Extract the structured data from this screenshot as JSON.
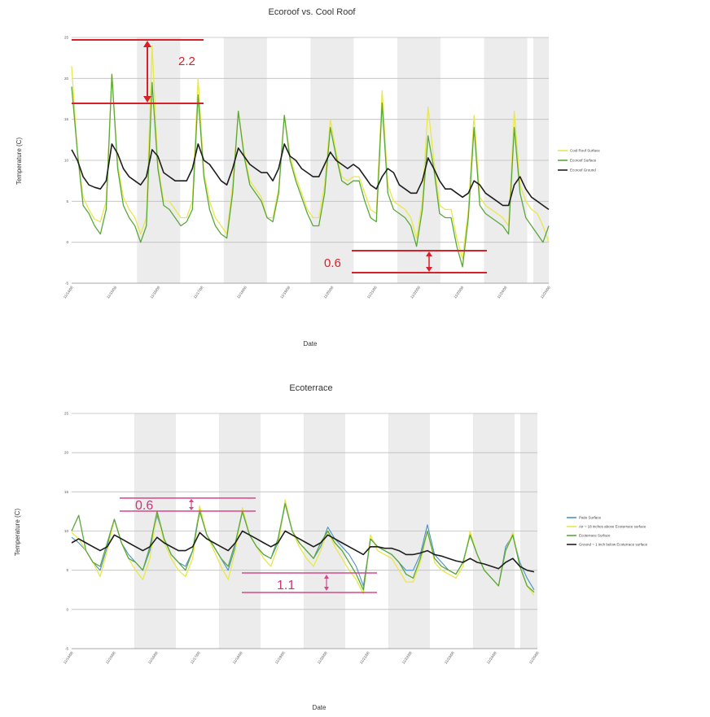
{
  "chart_data": [
    {
      "type": "line",
      "title": "Ecoroof vs. Cool Roof",
      "xlabel": "Date",
      "ylabel": "Temperature (C)",
      "ylim": [
        -5,
        25
      ],
      "yticks": [
        25,
        20,
        15,
        10,
        5,
        0,
        -5
      ],
      "x_tick_labels": [
        "11/14/08",
        "11/15/08",
        "11/16/08",
        "11/17/08",
        "11/18/08",
        "11/19/08",
        "11/20/08",
        "11/21/08",
        "11/22/08",
        "11/23/08",
        "11/24/08",
        "11/25/08"
      ],
      "grid": true,
      "legend_position": "right",
      "series": [
        {
          "name": "Cool Roof Surface",
          "color": "#e8e84a",
          "values": [
            21.5,
            11,
            5.5,
            4,
            2.8,
            2.5,
            5,
            20.5,
            9.5,
            5.5,
            4,
            3,
            1,
            3,
            24,
            9.5,
            5,
            5,
            4,
            3,
            3,
            5,
            20,
            8.5,
            5,
            3,
            2,
            1,
            7,
            16,
            11,
            7.5,
            6.5,
            5.5,
            3,
            3,
            6.5,
            15.5,
            10.5,
            8,
            6,
            4,
            3,
            3,
            7,
            15,
            11,
            8,
            7.5,
            8,
            8,
            6,
            4,
            3.5,
            18.5,
            7,
            5,
            4.5,
            4,
            3,
            0.5,
            5,
            16.5,
            10,
            4.5,
            4,
            4,
            0.5,
            -2,
            4,
            15.5,
            5.5,
            4.5,
            4,
            3.5,
            3,
            2,
            16,
            7,
            5,
            4,
            3.5,
            2,
            0
          ]
        },
        {
          "name": "Ecoroof Surface",
          "color": "#5aa83c",
          "values": [
            19,
            11,
            4.5,
            3.5,
            2,
            1,
            4,
            20.5,
            9,
            4.5,
            3,
            2,
            0,
            2,
            19.5,
            9,
            4.5,
            4,
            3,
            2,
            2.5,
            4,
            18,
            8,
            4,
            2,
            1,
            0.5,
            6,
            16,
            10.5,
            7,
            6,
            5,
            3,
            2.5,
            6,
            15.5,
            10,
            7.5,
            5.5,
            3.5,
            2,
            2,
            6,
            14,
            10.5,
            7.5,
            7,
            7.5,
            7.5,
            5,
            3,
            2.5,
            17,
            6,
            4,
            3.5,
            3,
            2,
            -0.5,
            4,
            13,
            9,
            3.5,
            3,
            3,
            -0.5,
            -3,
            3,
            14,
            4.5,
            3.5,
            3,
            2.5,
            2,
            1,
            14,
            6,
            3,
            2,
            1,
            0,
            2
          ]
        },
        {
          "name": "Ecoroof Ground",
          "color": "#1e1e1e",
          "values": [
            11.3,
            10,
            8,
            7,
            6.7,
            6.5,
            7.5,
            12,
            10.8,
            9,
            8,
            7.5,
            7,
            8,
            11.3,
            10.5,
            8.5,
            8,
            7.5,
            7.5,
            7.5,
            9,
            12,
            10,
            9.5,
            8.5,
            7.5,
            7,
            9,
            11.5,
            10.5,
            9.5,
            9,
            8.5,
            8.5,
            7.5,
            9,
            12,
            10.5,
            10,
            9,
            8.5,
            8,
            8,
            9.5,
            11,
            10,
            9.5,
            9,
            9.5,
            9,
            8,
            7,
            6.5,
            8,
            9,
            8.5,
            7,
            6.5,
            6,
            6,
            7.5,
            10.3,
            9,
            7.5,
            6.5,
            6.5,
            6,
            5.5,
            6,
            7.5,
            7,
            6,
            5.5,
            5,
            4.5,
            4.5,
            7,
            8,
            6.5,
            5.5,
            5,
            4.5,
            4
          ]
        }
      ],
      "annotations": [
        "2.2",
        "0.6"
      ]
    },
    {
      "type": "line",
      "title": "Ecoterrace",
      "xlabel": "Date",
      "ylabel": "Temperature (C)",
      "ylim": [
        -5,
        25
      ],
      "yticks": [
        25,
        20,
        15,
        10,
        5,
        0,
        -5
      ],
      "x_tick_labels": [
        "11/14/08",
        "11/15/08",
        "11/16/08",
        "11/17/08",
        "11/18/08",
        "11/19/08",
        "11/20/08",
        "11/21/08",
        "11/22/08",
        "11/23/08",
        "11/24/08",
        "11/25/08"
      ],
      "grid": true,
      "legend_position": "right",
      "series": [
        {
          "name": "Patio Surface",
          "color": "#4e8fc8",
          "values": [
            9.2,
            8.5,
            7.5,
            6,
            5,
            8,
            11.5,
            8.5,
            7,
            6,
            5,
            7.5,
            12,
            9,
            7,
            6,
            5.5,
            7.5,
            13,
            9.5,
            8,
            6.5,
            5,
            8,
            12.5,
            9.5,
            8,
            7,
            6.5,
            8.5,
            13.5,
            10,
            8.5,
            7.5,
            6.5,
            8,
            10.5,
            9,
            8,
            7,
            5.5,
            3,
            9,
            8,
            7.5,
            7,
            6,
            5,
            5,
            7,
            10.8,
            7,
            6,
            5,
            4.5,
            6,
            9.5,
            7,
            5,
            4,
            3,
            8,
            9.5,
            6,
            4,
            2.5
          ]
        },
        {
          "name": "Air ~ 18 inches above Ecoterrace surface",
          "color": "#e8e84a",
          "values": [
            9.8,
            9,
            7.5,
            6,
            4.2,
            7.5,
            11.5,
            8.5,
            6.5,
            5,
            3.8,
            6.5,
            12.5,
            8.5,
            6.5,
            5,
            4.2,
            6.5,
            13.2,
            9.5,
            7.5,
            5.5,
            3.8,
            7.5,
            13,
            9.5,
            8,
            6.5,
            5.5,
            8,
            14,
            10,
            8,
            6.5,
            5.5,
            7.5,
            10,
            8,
            6.5,
            5,
            3.8,
            2,
            9.5,
            7.5,
            7,
            6.5,
            5,
            3.5,
            3.5,
            6,
            10,
            6,
            5,
            4.5,
            4,
            5.5,
            10,
            7,
            5,
            4,
            3,
            7.5,
            9.8,
            5.5,
            3,
            1.8
          ]
        },
        {
          "name": "Ecoterrace Surface",
          "color": "#5aa83c",
          "values": [
            10,
            12,
            7.5,
            6,
            5.5,
            8.5,
            11.5,
            8.5,
            6.5,
            6,
            5,
            8,
            12.5,
            9,
            7,
            6,
            5,
            7.5,
            12.5,
            9.5,
            8,
            6.5,
            5.5,
            8.5,
            12.5,
            9.5,
            8,
            7,
            6.5,
            9,
            13.5,
            10,
            8.5,
            7.5,
            6.5,
            8.5,
            10,
            8.5,
            7.5,
            6,
            4.5,
            2.5,
            9,
            8,
            7.5,
            7,
            6,
            4.5,
            4,
            6.5,
            10,
            6.5,
            5.5,
            5,
            4.5,
            6,
            9.5,
            7,
            5,
            4,
            3,
            7.5,
            9.5,
            5.5,
            3,
            2.2
          ]
        },
        {
          "name": "Ground ~ 1 inch below Ecoterrace surface",
          "color": "#1e1e1e",
          "values": [
            8.5,
            9,
            8.5,
            8,
            7.5,
            8,
            9.5,
            9,
            8.5,
            8,
            7.5,
            8,
            9.2,
            8.5,
            8,
            7.5,
            7.5,
            8,
            9.8,
            9,
            8.5,
            8,
            7.5,
            8.5,
            10,
            9.5,
            9,
            8.5,
            8,
            8.5,
            10,
            9.5,
            9,
            8.5,
            8,
            8.5,
            9.5,
            9,
            8.5,
            8,
            7.5,
            7,
            8,
            8,
            7.8,
            7.8,
            7.5,
            7,
            7,
            7.2,
            7.5,
            7,
            6.8,
            6.5,
            6.2,
            6,
            6.5,
            6,
            5.8,
            5.5,
            5.2,
            6,
            6.5,
            5.5,
            5,
            4.8
          ]
        }
      ],
      "annotations": [
        "0.6",
        "1.1"
      ]
    }
  ]
}
